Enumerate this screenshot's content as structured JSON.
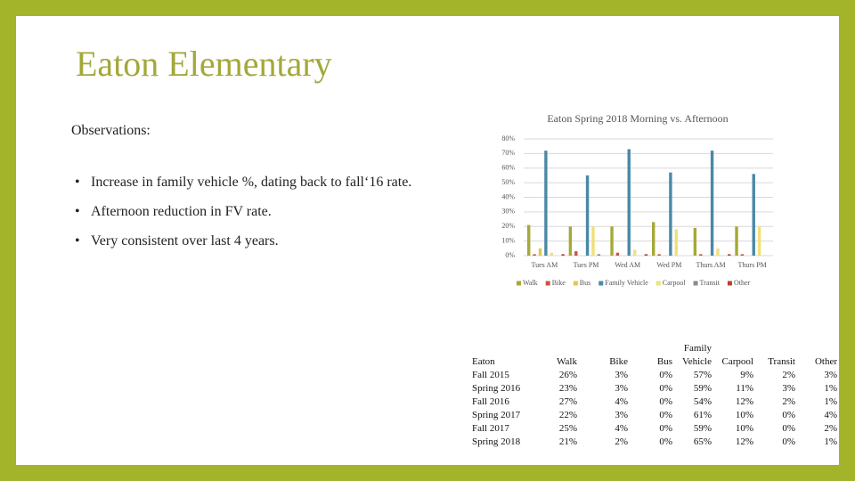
{
  "header": {
    "title": "Eaton Elementary"
  },
  "observations": {
    "heading": "Observations:",
    "bullets": [
      "Increase in family vehicle %, dating back to fall‘16 rate.",
      "Afternoon reduction in FV rate.",
      "Very consistent over last 4 years."
    ]
  },
  "chart_data": {
    "type": "bar",
    "title": "Eaton Spring 2018 Morning vs. Afternoon",
    "categories": [
      "Tues AM",
      "Tues PM",
      "Wed AM",
      "Wed PM",
      "Thurs AM",
      "Thurs PM"
    ],
    "series": [
      {
        "name": "Walk",
        "color": "#a5a936",
        "values": [
          21,
          20,
          20,
          23,
          19,
          20
        ]
      },
      {
        "name": "Bike",
        "color": "#c8553d",
        "values": [
          1,
          3,
          2,
          1,
          1,
          1
        ]
      },
      {
        "name": "Bus",
        "color": "#e3c64a",
        "values": [
          5,
          0,
          0,
          0,
          0,
          0
        ]
      },
      {
        "name": "Family Vehicle",
        "color": "#4b88a8",
        "values": [
          72,
          55,
          73,
          57,
          72,
          56
        ]
      },
      {
        "name": "Carpool",
        "color": "#efe07a",
        "values": [
          2,
          20,
          4,
          18,
          5,
          20
        ]
      },
      {
        "name": "Transit",
        "color": "#8a8a8a",
        "values": [
          0,
          1,
          0,
          0,
          0,
          0
        ]
      },
      {
        "name": "Other",
        "color": "#b7412e",
        "values": [
          1,
          0,
          1,
          0,
          1,
          0
        ]
      }
    ],
    "ylim": [
      0,
      80
    ],
    "yticks": [
      {
        "value": 0,
        "label": "0%"
      },
      {
        "value": 10,
        "label": "10%"
      },
      {
        "value": 20,
        "label": "20%"
      },
      {
        "value": 30,
        "label": "30%"
      },
      {
        "value": 40,
        "label": "40%"
      },
      {
        "value": 50,
        "label": "50%"
      },
      {
        "value": 60,
        "label": "60%"
      },
      {
        "value": 70,
        "label": "70%"
      },
      {
        "value": 80,
        "label": "80%"
      }
    ],
    "grid": true,
    "legend": "bottom"
  },
  "table": {
    "columns": [
      "Eaton",
      "Walk",
      "Bike",
      "Bus",
      "Family Vehicle",
      "Carpool",
      "Transit",
      "Other"
    ],
    "rows": [
      [
        "Fall 2015",
        "26%",
        "3%",
        "0%",
        "57%",
        "9%",
        "2%",
        "3%"
      ],
      [
        "Spring 2016",
        "23%",
        "3%",
        "0%",
        "59%",
        "11%",
        "3%",
        "1%"
      ],
      [
        "Fall 2016",
        "27%",
        "4%",
        "0%",
        "54%",
        "12%",
        "2%",
        "1%"
      ],
      [
        "Spring 2017",
        "22%",
        "3%",
        "0%",
        "61%",
        "10%",
        "0%",
        "4%"
      ],
      [
        "Fall 2017",
        "25%",
        "4%",
        "0%",
        "59%",
        "10%",
        "0%",
        "2%"
      ],
      [
        "Spring 2018",
        "21%",
        "2%",
        "0%",
        "65%",
        "12%",
        "0%",
        "1%"
      ]
    ]
  }
}
